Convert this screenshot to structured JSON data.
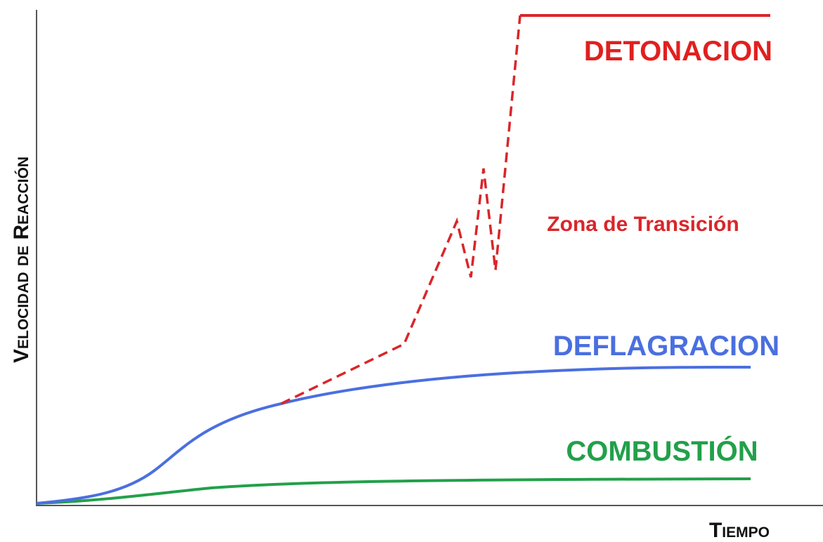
{
  "y_axis_label": "Velocidad de Reacción",
  "x_axis_label": "Tiempo",
  "curves": [
    {
      "label": "DETONACION"
    },
    {
      "label": "Zona de Transición"
    },
    {
      "label": "DEFLAGRACION"
    },
    {
      "label": "COMBUSTIÓN"
    }
  ]
}
